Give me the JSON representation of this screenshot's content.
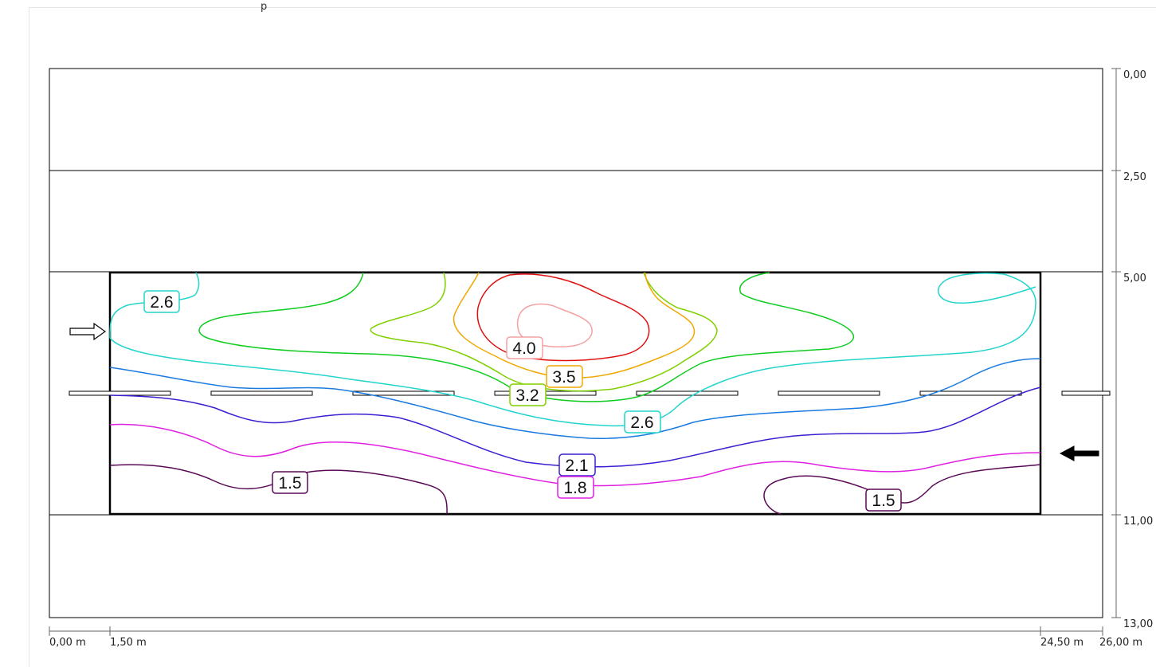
{
  "header": {
    "fragment": "p"
  },
  "axes": {
    "x_ticks": [
      {
        "value": 0.0,
        "label": "0,00 m"
      },
      {
        "value": 1.5,
        "label": "1,50 m"
      },
      {
        "value": 24.5,
        "label": "24,50 m"
      },
      {
        "value": 26.0,
        "label": "26,00 m"
      }
    ],
    "y_ticks": [
      {
        "value": 0.0,
        "label": "0,00"
      },
      {
        "value": 2.5,
        "label": "2,50"
      },
      {
        "value": 5.0,
        "label": "5,00"
      },
      {
        "value": 11.0,
        "label": "11,00"
      },
      {
        "value": 13.0,
        "label": "13,00"
      }
    ],
    "road_extent_m": {
      "x": [
        0,
        26
      ],
      "y": [
        0,
        13
      ]
    },
    "field_extent_m": {
      "x": [
        1.5,
        24.5
      ],
      "y": [
        5,
        11
      ]
    }
  },
  "contour_labels": [
    {
      "text": "2.6",
      "color": "#22d4cc"
    },
    {
      "text": "4.0",
      "color": "#f4a0a0"
    },
    {
      "text": "3.5",
      "color": "#f0a800"
    },
    {
      "text": "3.2",
      "color": "#80d000"
    },
    {
      "text": "2.6",
      "color": "#22d4cc"
    },
    {
      "text": "2.1",
      "color": "#3a20d0"
    },
    {
      "text": "1.8",
      "color": "#e020e0"
    },
    {
      "text": "1.5",
      "color": "#5a0a55"
    },
    {
      "text": "1.5",
      "color": "#5a0a55"
    }
  ],
  "direction_arrows": [
    {
      "name": "traffic-direction-right-icon",
      "style": "outline"
    },
    {
      "name": "traffic-direction-left-icon",
      "style": "filled"
    }
  ]
}
